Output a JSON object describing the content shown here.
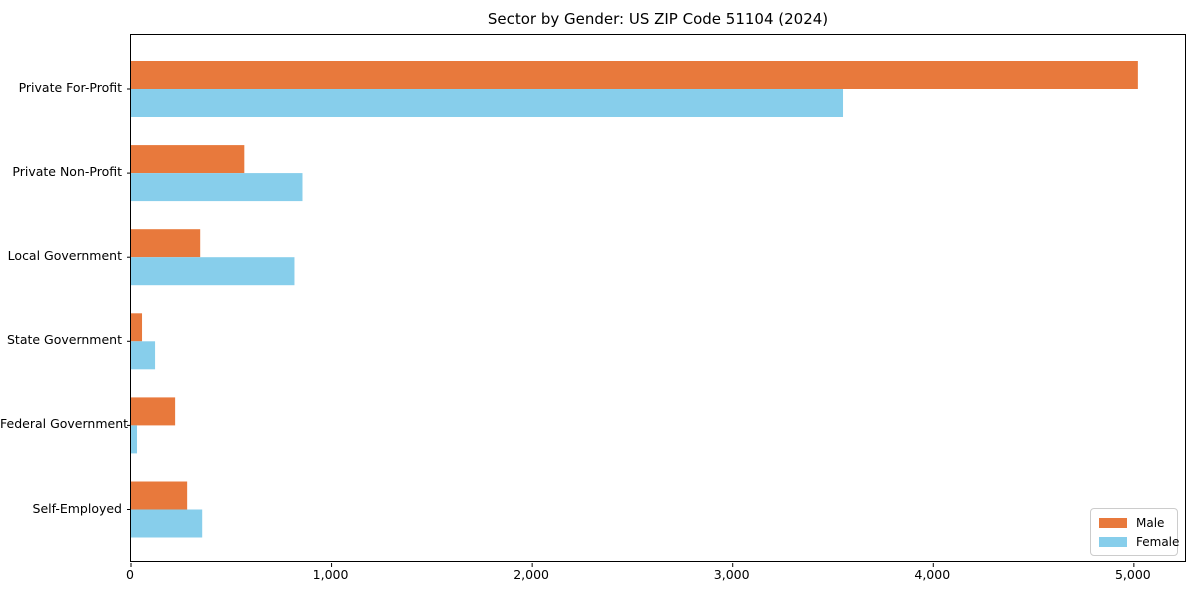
{
  "chart_data": {
    "type": "bar",
    "orientation": "horizontal",
    "title": "Sector by Gender: US ZIP Code 51104 (2024)",
    "categories": [
      "Private For-Profit",
      "Private Non-Profit",
      "Local Government",
      "State Government",
      "Federal Government",
      "Self-Employed"
    ],
    "series": [
      {
        "name": "Male",
        "color": "#E8793C",
        "values": [
          5020,
          565,
          345,
          55,
          220,
          280
        ]
      },
      {
        "name": "Female",
        "color": "#87CEEB",
        "values": [
          3550,
          855,
          815,
          120,
          30,
          355
        ]
      }
    ],
    "xlabel": "",
    "ylabel": "",
    "xlim": [
      0,
      5265
    ],
    "x_ticks": [
      {
        "value": 0,
        "label": "0"
      },
      {
        "value": 1000,
        "label": "1,000"
      },
      {
        "value": 2000,
        "label": "2,000"
      },
      {
        "value": 3000,
        "label": "3,000"
      },
      {
        "value": 4000,
        "label": "4,000"
      },
      {
        "value": 5000,
        "label": "5,000"
      }
    ],
    "grid": false,
    "legend_position": "lower right",
    "legend_entries": [
      "Male",
      "Female"
    ]
  }
}
